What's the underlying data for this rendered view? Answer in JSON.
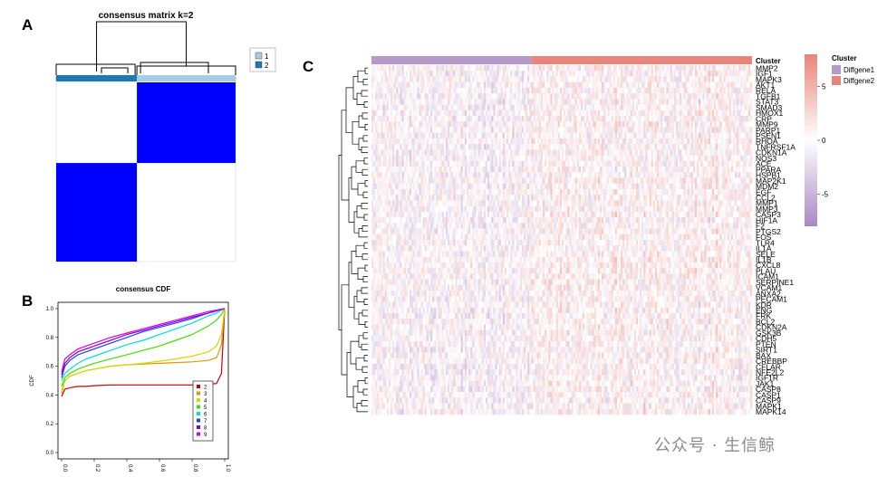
{
  "panels": {
    "a": "A",
    "b": "B",
    "c": "C"
  },
  "chart_data": [
    {
      "panel": "A",
      "type": "heatmap",
      "title": "consensus matrix k=2",
      "k": 2,
      "cluster_proportions": [
        0.45,
        0.55
      ],
      "annotation_order": [
        2,
        1
      ],
      "legend": [
        {
          "label": "1",
          "color": "#a6cee3"
        },
        {
          "label": "2",
          "color": "#1f78b4"
        }
      ],
      "matrix_color": "#0000ff",
      "background_color": "#ffffff"
    },
    {
      "panel": "B",
      "type": "line",
      "title": "consensus CDF",
      "ylabel": "CDF",
      "xlim": [
        0.0,
        1.0
      ],
      "ylim": [
        0.0,
        1.0
      ],
      "xticks": [
        "0.0",
        "0.2",
        "0.4",
        "0.6",
        "0.8",
        "1.0"
      ],
      "yticks": [
        "0.0",
        "0.2",
        "0.4",
        "0.6",
        "0.8",
        "1.0"
      ],
      "x": [
        0.0,
        0.02,
        0.05,
        0.1,
        0.15,
        0.2,
        0.3,
        0.4,
        0.5,
        0.6,
        0.7,
        0.8,
        0.9,
        0.95,
        0.98,
        1.0
      ],
      "series": [
        {
          "name": "2",
          "color": "#cc0000",
          "values": [
            0.39,
            0.44,
            0.45,
            0.46,
            0.46,
            0.465,
            0.47,
            0.47,
            0.47,
            0.47,
            0.47,
            0.47,
            0.475,
            0.48,
            0.55,
            1.0
          ]
        },
        {
          "name": "3",
          "color": "#e69500",
          "values": [
            0.41,
            0.5,
            0.53,
            0.55,
            0.57,
            0.58,
            0.6,
            0.61,
            0.615,
            0.62,
            0.625,
            0.63,
            0.64,
            0.66,
            0.75,
            1.0
          ]
        },
        {
          "name": "4",
          "color": "#ccdd00",
          "values": [
            0.43,
            0.5,
            0.53,
            0.55,
            0.57,
            0.58,
            0.6,
            0.61,
            0.62,
            0.635,
            0.65,
            0.67,
            0.7,
            0.74,
            0.82,
            1.0
          ]
        },
        {
          "name": "5",
          "color": "#44dd00",
          "values": [
            0.46,
            0.52,
            0.55,
            0.58,
            0.6,
            0.62,
            0.65,
            0.68,
            0.71,
            0.74,
            0.78,
            0.82,
            0.88,
            0.92,
            0.96,
            1.0
          ]
        },
        {
          "name": "6",
          "color": "#00dddd",
          "values": [
            0.5,
            0.55,
            0.58,
            0.62,
            0.65,
            0.67,
            0.71,
            0.75,
            0.78,
            0.82,
            0.86,
            0.9,
            0.95,
            0.97,
            0.99,
            1.0
          ]
        },
        {
          "name": "7",
          "color": "#2244ee",
          "values": [
            0.52,
            0.6,
            0.64,
            0.68,
            0.7,
            0.72,
            0.76,
            0.8,
            0.84,
            0.87,
            0.9,
            0.93,
            0.97,
            0.985,
            0.995,
            1.0
          ]
        },
        {
          "name": "8",
          "color": "#8800dd",
          "values": [
            0.54,
            0.62,
            0.66,
            0.7,
            0.72,
            0.74,
            0.78,
            0.82,
            0.85,
            0.88,
            0.91,
            0.94,
            0.97,
            0.985,
            0.995,
            1.0
          ]
        },
        {
          "name": "9",
          "color": "#dd00dd",
          "values": [
            0.56,
            0.65,
            0.68,
            0.72,
            0.74,
            0.76,
            0.8,
            0.83,
            0.86,
            0.89,
            0.92,
            0.95,
            0.98,
            0.99,
            0.997,
            1.0
          ]
        }
      ],
      "legend_position": "bottom-right"
    },
    {
      "panel": "C",
      "type": "heatmap",
      "genes": [
        "MMP2",
        "IGF1",
        "MAPK3",
        "AKT1",
        "RELA",
        "TGFB1",
        "STAT3",
        "SMAD3",
        "HMOX1",
        "CRP",
        "MMP9",
        "PARP1",
        "PSEN1",
        "RHOA",
        "TNFRSF1A",
        "CDKN1A",
        "NOS3",
        "ACE",
        "PPARA",
        "HSPB1",
        "MAP2K1",
        "MDM2",
        "EGF",
        "CCL2",
        "MMP1",
        "MMP3",
        "CASP3",
        "HIF1A",
        "F2",
        "PTGS2",
        "FOS",
        "TLR4",
        "IL1A",
        "SELE",
        "IL1B",
        "CXCL8",
        "PLAU",
        "ICAM1",
        "SERPINE1",
        "VCAM1",
        "ANXA2",
        "PECAM1",
        "KDR",
        "ENG",
        "FRK",
        "BCL2",
        "CDKN2A",
        "GSK3B",
        "CDH5",
        "PTEN",
        "SIRT1",
        "BAX",
        "CREBBP",
        "CFLAR",
        "NFE2L2",
        "IGF1R",
        "JAK1",
        "CASP8",
        "CASP1",
        "CASP9",
        "MAPK1",
        "MAPK14"
      ],
      "cluster_labels": [
        "Diffgene1",
        "Diffgene2"
      ],
      "cluster_colors": [
        "#b39ac9",
        "#e8857a"
      ],
      "cluster_proportions": [
        0.42,
        0.58
      ],
      "n_samples": 200,
      "legend_title": "Cluster",
      "color_scale": {
        "ticks": [
          "5",
          "0",
          "-5"
        ],
        "values": [
          5,
          0,
          -5
        ],
        "range": [
          -8,
          8
        ],
        "colors": [
          "#a888c2",
          "#ffffff",
          "#e8857a"
        ]
      }
    }
  ],
  "watermark": "公众号 · 生信鲸"
}
